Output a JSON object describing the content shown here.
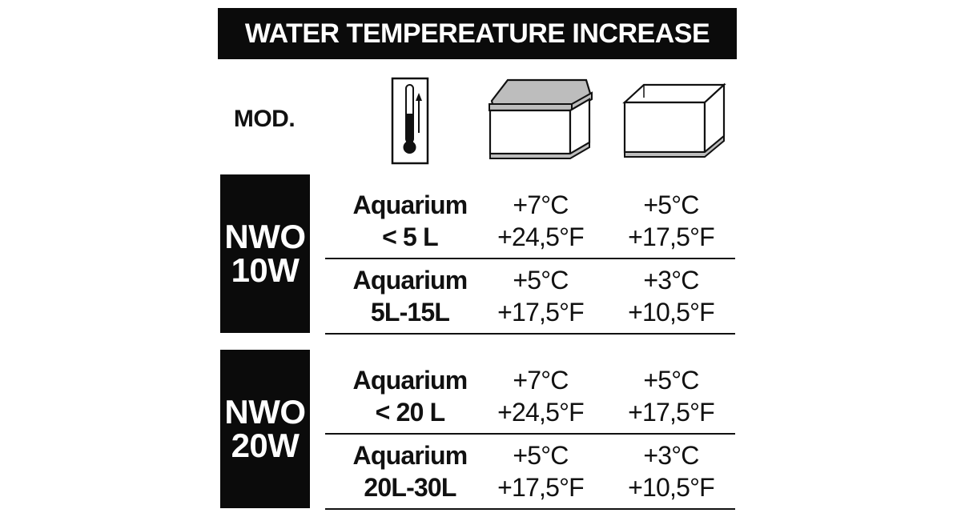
{
  "title": "WATER TEMPEREATURE INCREASE",
  "mod_label": "MOD.",
  "icons": {
    "thermometer": "thermometer-rising-icon",
    "covered_tank": "covered-aquarium-icon",
    "open_tank": "open-aquarium-icon"
  },
  "models": [
    {
      "name_line1": "NWO",
      "name_line2": "10W",
      "rows": [
        {
          "aquarium": "Aquarium",
          "size": "< 5 L",
          "covered_c": "+7°C",
          "covered_f": "+24,5°F",
          "open_c": "+5°C",
          "open_f": "+17,5°F"
        },
        {
          "aquarium": "Aquarium",
          "size": "5L-15L",
          "covered_c": "+5°C",
          "covered_f": "+17,5°F",
          "open_c": "+3°C",
          "open_f": "+10,5°F"
        }
      ]
    },
    {
      "name_line1": "NWO",
      "name_line2": "20W",
      "rows": [
        {
          "aquarium": "Aquarium",
          "size": "< 20 L",
          "covered_c": "+7°C",
          "covered_f": "+24,5°F",
          "open_c": "+5°C",
          "open_f": "+17,5°F"
        },
        {
          "aquarium": "Aquarium",
          "size": "20L-30L",
          "covered_c": "+5°C",
          "covered_f": "+17,5°F",
          "open_c": "+3°C",
          "open_f": "+10,5°F"
        }
      ]
    }
  ]
}
